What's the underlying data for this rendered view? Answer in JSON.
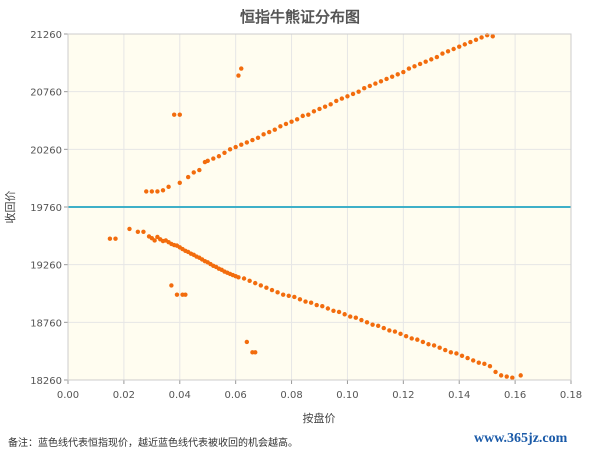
{
  "chart_data": {
    "type": "scatter",
    "title": "恒指牛熊证分布图",
    "xlabel": "按盘价",
    "ylabel": "收回价",
    "xlim": [
      0,
      0.18
    ],
    "ylim": [
      18260,
      21260
    ],
    "xticks": [
      "0.00",
      "0.02",
      "0.04",
      "0.06",
      "0.08",
      "0.10",
      "0.12",
      "0.14",
      "0.16",
      "0.18"
    ],
    "yticks": [
      "18260",
      "18760",
      "19260",
      "19760",
      "20260",
      "20760",
      "21260"
    ],
    "reference_line": {
      "y": 19760
    },
    "grid": true,
    "series": [
      {
        "color": "#f26c0d",
        "points": [
          [
            0.015,
            19485
          ],
          [
            0.017,
            19485
          ],
          [
            0.022,
            19570
          ],
          [
            0.025,
            19545
          ],
          [
            0.027,
            19545
          ],
          [
            0.028,
            19895
          ],
          [
            0.029,
            19505
          ],
          [
            0.03,
            19895
          ],
          [
            0.03,
            19490
          ],
          [
            0.031,
            19470
          ],
          [
            0.032,
            19895
          ],
          [
            0.032,
            19500
          ],
          [
            0.033,
            19480
          ],
          [
            0.034,
            19905
          ],
          [
            0.034,
            19465
          ],
          [
            0.035,
            19470
          ],
          [
            0.036,
            19455
          ],
          [
            0.036,
            19935
          ],
          [
            0.037,
            19440
          ],
          [
            0.037,
            19080
          ],
          [
            0.038,
            19430
          ],
          [
            0.038,
            20560
          ],
          [
            0.039,
            19425
          ],
          [
            0.039,
            19000
          ],
          [
            0.04,
            19410
          ],
          [
            0.04,
            20560
          ],
          [
            0.04,
            19970
          ],
          [
            0.041,
            19000
          ],
          [
            0.041,
            19395
          ],
          [
            0.042,
            19380
          ],
          [
            0.042,
            19000
          ],
          [
            0.043,
            19370
          ],
          [
            0.043,
            20020
          ],
          [
            0.044,
            19355
          ],
          [
            0.045,
            19345
          ],
          [
            0.045,
            20060
          ],
          [
            0.046,
            19330
          ],
          [
            0.047,
            19320
          ],
          [
            0.047,
            20080
          ],
          [
            0.048,
            19305
          ],
          [
            0.049,
            20150
          ],
          [
            0.049,
            19290
          ],
          [
            0.05,
            19280
          ],
          [
            0.05,
            20160
          ],
          [
            0.051,
            19265
          ],
          [
            0.052,
            20180
          ],
          [
            0.052,
            19250
          ],
          [
            0.053,
            19240
          ],
          [
            0.054,
            20200
          ],
          [
            0.054,
            19225
          ],
          [
            0.055,
            19215
          ],
          [
            0.056,
            20230
          ],
          [
            0.056,
            19200
          ],
          [
            0.057,
            19190
          ],
          [
            0.058,
            20260
          ],
          [
            0.058,
            19180
          ],
          [
            0.059,
            19170
          ],
          [
            0.06,
            20280
          ],
          [
            0.06,
            19160
          ],
          [
            0.061,
            19150
          ],
          [
            0.061,
            20900
          ],
          [
            0.062,
            20960
          ],
          [
            0.062,
            20300
          ],
          [
            0.063,
            19140
          ],
          [
            0.064,
            20320
          ],
          [
            0.064,
            18590
          ],
          [
            0.065,
            19120
          ],
          [
            0.066,
            20340
          ],
          [
            0.066,
            18500
          ],
          [
            0.067,
            18500
          ],
          [
            0.067,
            19100
          ],
          [
            0.068,
            20360
          ],
          [
            0.069,
            19080
          ],
          [
            0.07,
            20390
          ],
          [
            0.071,
            19060
          ],
          [
            0.072,
            20410
          ],
          [
            0.073,
            19040
          ],
          [
            0.074,
            20430
          ],
          [
            0.075,
            19020
          ],
          [
            0.076,
            20460
          ],
          [
            0.077,
            19000
          ],
          [
            0.078,
            20480
          ],
          [
            0.079,
            18990
          ],
          [
            0.08,
            20500
          ],
          [
            0.081,
            18980
          ],
          [
            0.082,
            20520
          ],
          [
            0.083,
            18960
          ],
          [
            0.084,
            20550
          ],
          [
            0.085,
            18940
          ],
          [
            0.086,
            20560
          ],
          [
            0.087,
            18930
          ],
          [
            0.088,
            20590
          ],
          [
            0.089,
            18910
          ],
          [
            0.09,
            20610
          ],
          [
            0.091,
            18900
          ],
          [
            0.092,
            20630
          ],
          [
            0.093,
            18880
          ],
          [
            0.094,
            20650
          ],
          [
            0.095,
            18860
          ],
          [
            0.096,
            20680
          ],
          [
            0.097,
            18850
          ],
          [
            0.098,
            20700
          ],
          [
            0.099,
            18830
          ],
          [
            0.1,
            20720
          ],
          [
            0.101,
            18810
          ],
          [
            0.102,
            20740
          ],
          [
            0.103,
            18800
          ],
          [
            0.104,
            20760
          ],
          [
            0.105,
            18780
          ],
          [
            0.106,
            20790
          ],
          [
            0.107,
            18760
          ],
          [
            0.108,
            20810
          ],
          [
            0.109,
            18740
          ],
          [
            0.11,
            20830
          ],
          [
            0.111,
            18730
          ],
          [
            0.112,
            20850
          ],
          [
            0.113,
            18710
          ],
          [
            0.114,
            20870
          ],
          [
            0.115,
            18690
          ],
          [
            0.116,
            20890
          ],
          [
            0.117,
            18680
          ],
          [
            0.118,
            20910
          ],
          [
            0.119,
            18660
          ],
          [
            0.12,
            20930
          ],
          [
            0.121,
            18640
          ],
          [
            0.122,
            20960
          ],
          [
            0.123,
            18620
          ],
          [
            0.124,
            20980
          ],
          [
            0.125,
            18610
          ],
          [
            0.126,
            21000
          ],
          [
            0.127,
            18590
          ],
          [
            0.128,
            21020
          ],
          [
            0.129,
            18570
          ],
          [
            0.13,
            21040
          ],
          [
            0.131,
            18560
          ],
          [
            0.132,
            21060
          ],
          [
            0.133,
            18540
          ],
          [
            0.134,
            21090
          ],
          [
            0.135,
            18520
          ],
          [
            0.136,
            21110
          ],
          [
            0.137,
            18500
          ],
          [
            0.138,
            21130
          ],
          [
            0.139,
            18490
          ],
          [
            0.14,
            21150
          ],
          [
            0.141,
            18470
          ],
          [
            0.142,
            21170
          ],
          [
            0.143,
            18450
          ],
          [
            0.144,
            21190
          ],
          [
            0.145,
            18430
          ],
          [
            0.146,
            21210
          ],
          [
            0.147,
            18410
          ],
          [
            0.148,
            21230
          ],
          [
            0.149,
            18400
          ],
          [
            0.15,
            21250
          ],
          [
            0.151,
            18380
          ],
          [
            0.152,
            21240
          ],
          [
            0.153,
            18330
          ],
          [
            0.155,
            18300
          ],
          [
            0.157,
            18290
          ],
          [
            0.159,
            18280
          ],
          [
            0.162,
            18300
          ]
        ]
      }
    ]
  },
  "footnote": "备注：蓝色线代表恒指现价，越近蓝色线代表被收回的机会越高。",
  "watermark": "www.365jz.com"
}
